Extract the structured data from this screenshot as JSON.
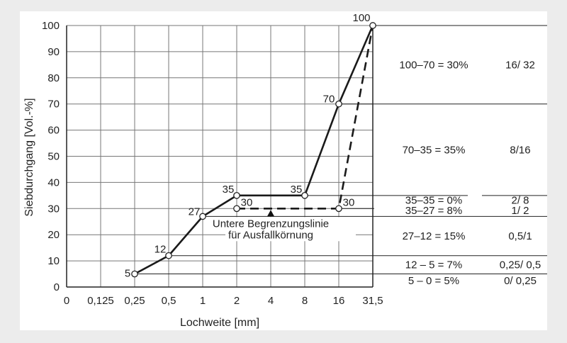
{
  "chart_data": {
    "type": "line",
    "xlabel": "Lochweite  [mm]",
    "ylabel": "Siebdurchgang  [Vol.-%]",
    "x_categories": [
      "0",
      "0,125",
      "0,25",
      "0,5",
      "1",
      "2",
      "4",
      "8",
      "16",
      "31,5"
    ],
    "ylim": [
      0,
      100
    ],
    "yticks": [
      "0",
      "10",
      "20",
      "30",
      "40",
      "50",
      "60",
      "70",
      "80",
      "90",
      "100"
    ],
    "grid": true,
    "series": [
      {
        "style": "solid",
        "points": [
          {
            "x": "0,25",
            "y": 5,
            "label": "5"
          },
          {
            "x": "0,5",
            "y": 12,
            "label": "12"
          },
          {
            "x": "1",
            "y": 27,
            "label": "27"
          },
          {
            "x": "2",
            "y": 35,
            "label": "35"
          },
          {
            "x": "8",
            "y": 35,
            "label": "35"
          },
          {
            "x": "16",
            "y": 70,
            "label": "70"
          },
          {
            "x": "31,5",
            "y": 100,
            "label": "100"
          }
        ]
      },
      {
        "style": "dashed",
        "points": [
          {
            "x": "2",
            "y": 30,
            "label": "30"
          },
          {
            "x": "16",
            "y": 30,
            "label": "30"
          },
          {
            "x": "31,5",
            "y": 100,
            "label": ""
          }
        ]
      }
    ],
    "annotation": {
      "line1": "Untere Begrenzungslinie",
      "line2": "für Ausfallkörnung",
      "arrow_x": "4",
      "arrow_y": 30
    },
    "right_table": [
      {
        "y_top": 100,
        "y_bottom": 70,
        "range": "100–70 = 30%",
        "ratio": "16/ 32"
      },
      {
        "y_top": 70,
        "y_bottom": 35,
        "range": "70–35 = 35%",
        "ratio": "8/16"
      },
      {
        "y_top": 35,
        "y_bottom": 30,
        "range": "35–35 =  0%",
        "ratio": "2/ 8"
      },
      {
        "y_top": 30,
        "y_bottom": 27,
        "range": "35–27 =  8%",
        "ratio": "1/ 2"
      },
      {
        "y_top": 27,
        "y_bottom": 12,
        "range": "27–12 = 15%",
        "ratio": "0,5/1"
      },
      {
        "y_top": 12,
        "y_bottom": 5,
        "range": "12 – 5 =  7%",
        "ratio": "0,25/ 0,5"
      },
      {
        "y_top": 5,
        "y_bottom": 0,
        "range": "5 – 0 =  5%",
        "ratio": "0/ 0,25"
      }
    ]
  }
}
